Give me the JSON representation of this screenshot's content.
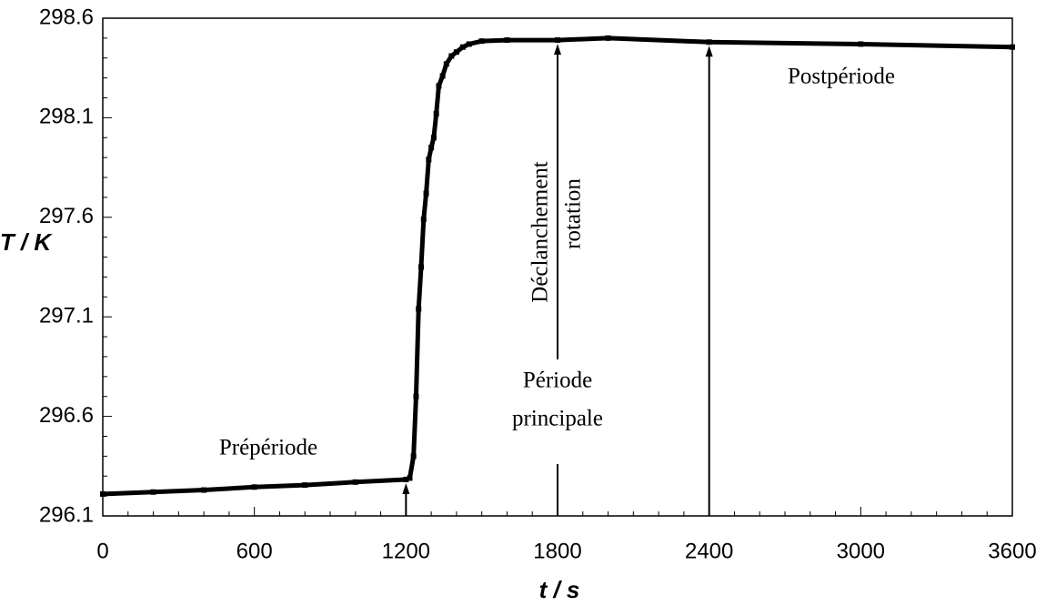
{
  "chart_data": {
    "type": "line",
    "x_label": "t / s",
    "y_label": "T / K",
    "x": [
      0,
      200,
      400,
      600,
      800,
      1000,
      1200,
      1215,
      1230,
      1240,
      1250,
      1260,
      1270,
      1280,
      1290,
      1300,
      1310,
      1320,
      1330,
      1345,
      1360,
      1380,
      1400,
      1425,
      1450,
      1500,
      1600,
      1800,
      2000,
      2400,
      3000,
      3600
    ],
    "series": [
      {
        "name": "T",
        "color": "#000000",
        "values": [
          296.21,
          296.22,
          296.23,
          296.245,
          296.255,
          296.27,
          296.283,
          296.29,
          296.4,
          296.7,
          297.14,
          297.35,
          297.59,
          297.72,
          297.89,
          297.95,
          298.0,
          298.12,
          298.26,
          298.31,
          298.37,
          298.41,
          298.43,
          298.455,
          298.47,
          298.485,
          298.49,
          298.49,
          298.5,
          298.48,
          298.47,
          298.455
        ]
      }
    ],
    "xlim": [
      0,
      3600
    ],
    "xticks": [
      0,
      600,
      1200,
      1800,
      2400,
      3000,
      3600
    ],
    "ylim": [
      296.1,
      298.6
    ],
    "yticks": [
      296.1,
      296.6,
      297.1,
      297.6,
      298.1,
      298.6
    ],
    "arrows_x": [
      1200,
      1800,
      2400
    ],
    "annotations": [
      "Prépériode",
      "Période",
      "principale",
      "Déclanchement",
      "rotation",
      "Postpériode"
    ]
  }
}
